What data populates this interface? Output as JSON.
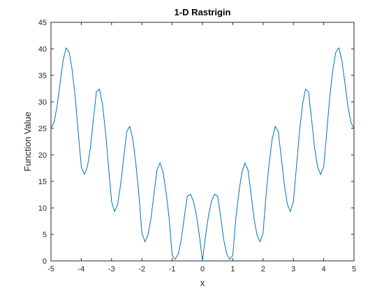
{
  "chart_data": {
    "type": "line",
    "title": "1-D Rastrigin",
    "xlabel": "x",
    "ylabel": "Function Value",
    "xlim": [
      -5,
      5
    ],
    "ylim": [
      0,
      45
    ],
    "xticks": [
      -5,
      -4,
      -3,
      -2,
      -1,
      0,
      1,
      2,
      3,
      4,
      5
    ],
    "yticks": [
      0,
      5,
      10,
      15,
      20,
      25,
      30,
      35,
      40,
      45
    ],
    "xtick_labels": [
      "-5",
      "-4",
      "-3",
      "-2",
      "-1",
      "0",
      "1",
      "2",
      "3",
      "4",
      "5"
    ],
    "ytick_labels": [
      "0",
      "5",
      "10",
      "15",
      "20",
      "25",
      "30",
      "35",
      "40",
      "45"
    ],
    "grid": false,
    "line_color": "#0072bd",
    "x": [
      -5.0,
      -4.9,
      -4.8,
      -4.7,
      -4.6,
      -4.5,
      -4.4,
      -4.3,
      -4.2,
      -4.1,
      -4.0,
      -3.9,
      -3.8,
      -3.7,
      -3.6,
      -3.5,
      -3.4,
      -3.3,
      -3.2,
      -3.1,
      -3.0,
      -2.9,
      -2.8,
      -2.7,
      -2.6,
      -2.5,
      -2.4,
      -2.3,
      -2.2,
      -2.1,
      -2.0,
      -1.9,
      -1.8,
      -1.7,
      -1.6,
      -1.5,
      -1.4,
      -1.3,
      -1.2,
      -1.1,
      -1.0,
      -0.9,
      -0.8,
      -0.7,
      -0.6,
      -0.5,
      -0.4,
      -0.3,
      -0.2,
      -0.1,
      0.0,
      0.1,
      0.2,
      0.3,
      0.4,
      0.5,
      0.6,
      0.7,
      0.8,
      0.9,
      1.0,
      1.1,
      1.2,
      1.3,
      1.4,
      1.5,
      1.6,
      1.7,
      1.8,
      1.9,
      2.0,
      2.1,
      2.2,
      2.3,
      2.4,
      2.5,
      2.6,
      2.7,
      2.8,
      2.9,
      3.0,
      3.1,
      3.2,
      3.3,
      3.4,
      3.5,
      3.6,
      3.7,
      3.8,
      3.9,
      4.0,
      4.1,
      4.2,
      4.3,
      4.4,
      4.5,
      4.6,
      4.7,
      4.8,
      4.9,
      5.0
    ],
    "y": [
      25.0,
      26.1,
      29.1,
      33.6,
      37.8,
      40.2,
      39.4,
      36.0,
      30.9,
      24.2,
      17.8,
      16.3,
      17.7,
      21.3,
      26.7,
      31.9,
      32.4,
      29.5,
      24.3,
      17.7,
      11.2,
      9.3,
      10.7,
      14.4,
      19.5,
      24.4,
      25.4,
      23.0,
      18.4,
      12.6,
      5.3,
      3.6,
      4.9,
      8.0,
      12.7,
      17.2,
      18.5,
      16.7,
      12.9,
      8.0,
      1.0,
      0.3,
      1.3,
      4.0,
      8.3,
      12.2,
      12.6,
      11.3,
      8.6,
      4.7,
      0.0,
      4.7,
      8.6,
      11.3,
      12.6,
      12.2,
      8.3,
      4.0,
      1.3,
      0.3,
      1.0,
      8.0,
      12.9,
      16.7,
      18.5,
      17.2,
      12.7,
      8.0,
      4.9,
      3.6,
      5.3,
      12.6,
      18.4,
      23.0,
      25.4,
      24.4,
      19.5,
      14.4,
      10.7,
      9.3,
      11.2,
      17.7,
      24.3,
      29.5,
      32.4,
      31.9,
      26.7,
      21.3,
      17.7,
      16.3,
      17.8,
      24.2,
      30.9,
      36.0,
      39.4,
      40.2,
      37.8,
      33.6,
      29.1,
      26.1,
      25.0
    ]
  }
}
